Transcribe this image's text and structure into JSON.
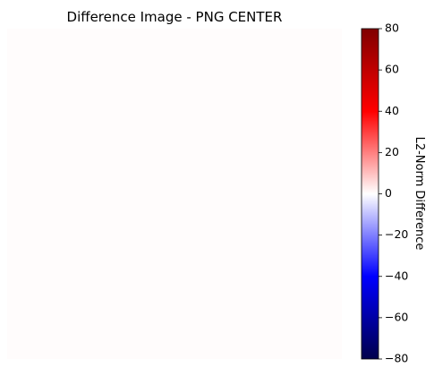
{
  "chart_data": {
    "type": "heatmap",
    "title": "Difference Image - PNG CENTER",
    "image": {
      "axes": "off",
      "fill_value": 0
    },
    "colorbar": {
      "label": "L2-Norm Difference",
      "colormap": "seismic",
      "vmin": -80,
      "vmax": 80,
      "ticks": [
        80,
        60,
        40,
        20,
        0,
        -20,
        -40,
        -60,
        -80
      ],
      "tick_labels": [
        "80",
        "60",
        "40",
        "20",
        "0",
        "−20",
        "−40",
        "−60",
        "−80"
      ]
    }
  },
  "colors": {
    "image_fill": "#fffcfc",
    "background": "#ffffff"
  }
}
